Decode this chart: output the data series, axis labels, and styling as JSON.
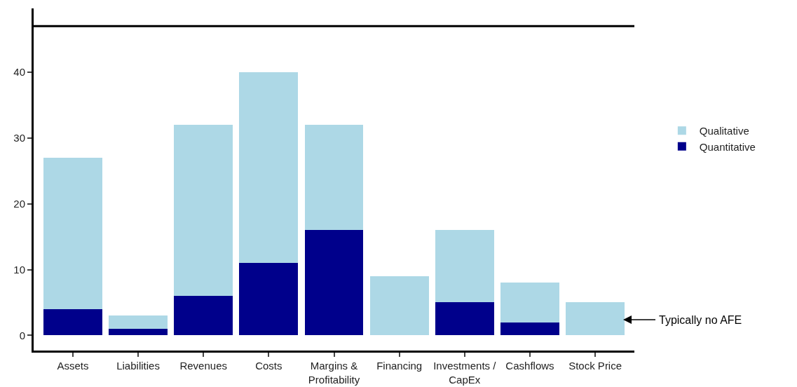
{
  "chart_data": {
    "type": "bar",
    "stacked": true,
    "categories": [
      "Assets",
      "Liabilities",
      "Revenues",
      "Costs",
      "Margins &\nProfitability",
      "Financing",
      "Investments /\nCapEx",
      "Cashflows",
      "Stock Price"
    ],
    "series": [
      {
        "name": "Quantitative",
        "color": "#00008b",
        "values": [
          4,
          1,
          6,
          11,
          16,
          0,
          5,
          2,
          0
        ]
      },
      {
        "name": "Qualitative",
        "color": "#add8e6",
        "values": [
          23,
          2,
          26,
          29,
          16,
          9,
          11,
          6,
          5
        ]
      }
    ],
    "ylim": [
      -2.3,
      49.7
    ],
    "yticks": [
      0,
      10,
      20,
      30,
      40
    ],
    "grid": false,
    "legend": "right",
    "ref_lines": [
      {
        "axis": "y",
        "value": 47,
        "label": null,
        "color": "#000000"
      }
    ],
    "annotations": [
      "Typically no AFE"
    ]
  }
}
